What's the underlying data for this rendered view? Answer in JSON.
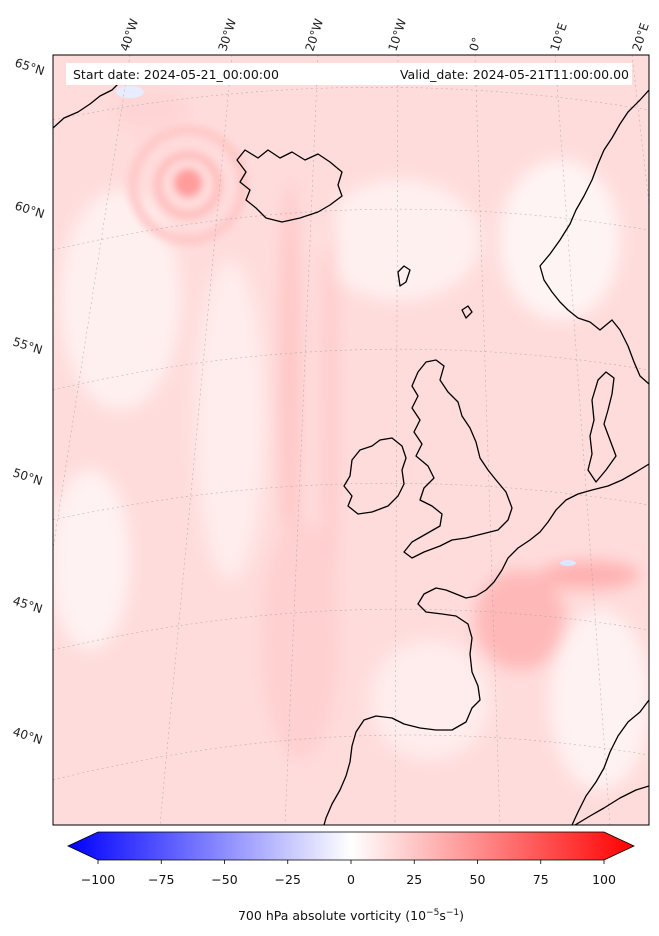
{
  "map": {
    "info_left": "Start date: 2024-05-21_00:00:00",
    "info_right": "Valid_date: 2024-05-21T11:00:00.00",
    "lon_labels": [
      "40°W",
      "30°W",
      "20°W",
      "10°W",
      "0°",
      "10°E",
      "20°E"
    ],
    "lat_labels": [
      "65°N",
      "60°N",
      "55°N",
      "50°N",
      "45°N",
      "40°N"
    ]
  },
  "colorbar": {
    "label": "700 hPa absolute vorticity (10",
    "label_exp": "−5",
    "label_unit": "s",
    "label_exp2": "−1",
    "label_close": ")",
    "ticks": [
      "−100",
      "−75",
      "−50",
      "−25",
      "0",
      "25",
      "50",
      "75",
      "100"
    ],
    "min": -100,
    "max": 100,
    "colors": {
      "low": "#0000ff",
      "mid": "#ffffff",
      "high": "#ff0000",
      "land": "#000000"
    }
  }
}
